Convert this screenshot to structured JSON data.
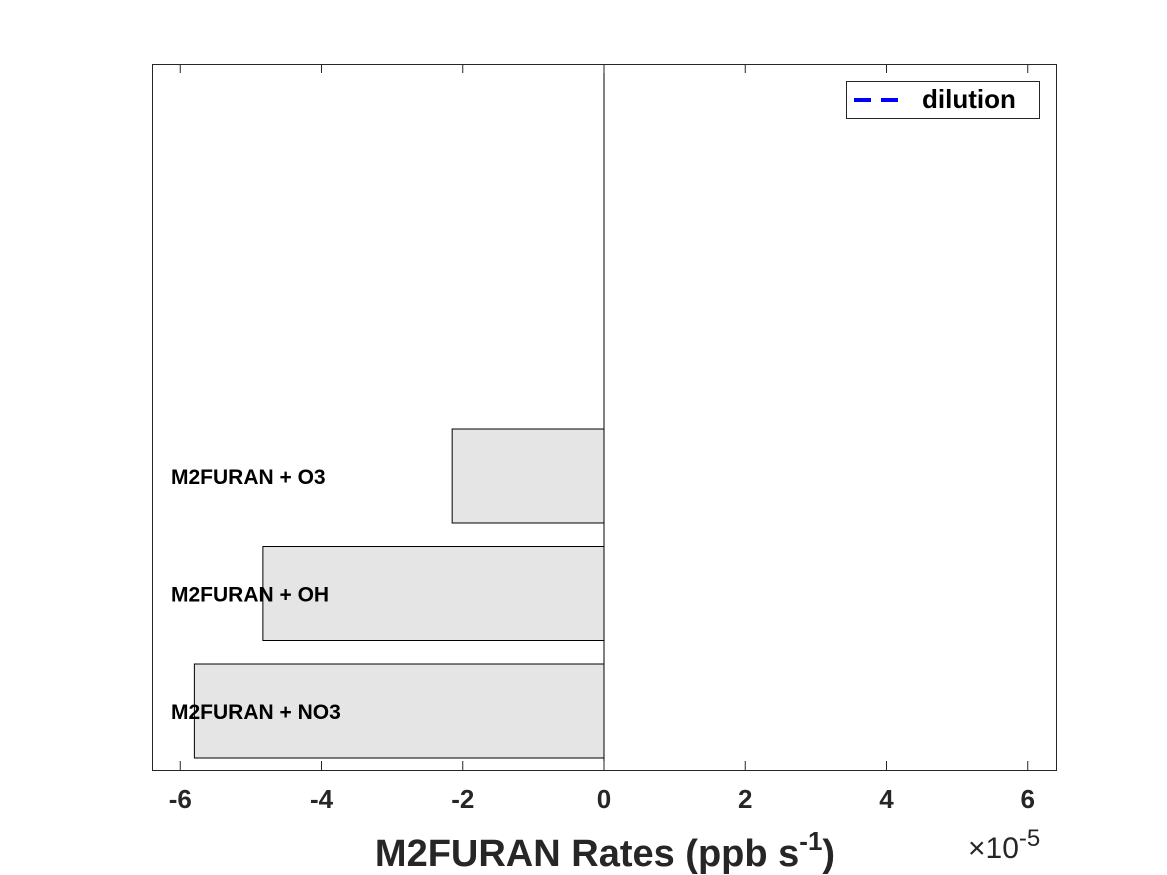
{
  "chart_data": {
    "type": "bar",
    "orientation": "horizontal",
    "categories": [
      "M2FURAN + NO3",
      "M2FURAN + OH",
      "M2FURAN + O3"
    ],
    "values": [
      -5.8,
      -4.83,
      -2.15
    ],
    "value_multiplier": "×10-5",
    "xlim": [
      -6.4,
      6.4
    ],
    "x_ticks": [
      -6,
      -4,
      -2,
      0,
      2,
      4,
      6
    ],
    "x_tick_labels": [
      "-6",
      "-4",
      "-2",
      "0",
      "2",
      "4",
      "6"
    ],
    "xlabel_main": "M2FURAN Rates (ppb s",
    "xlabel_sup": "-1",
    "xlabel_close": ")",
    "exponent_prefix": "×10",
    "exponent_sup": "-5",
    "legend": [
      {
        "name": "dilution",
        "style": "dashed",
        "color": "#0000ff"
      }
    ],
    "legend_position": "top-right",
    "bar_color": "#e5e5e5",
    "grid": false
  }
}
